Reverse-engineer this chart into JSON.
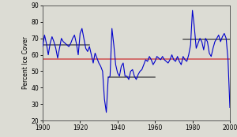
{
  "title": "",
  "xlabel": "",
  "ylabel": "Percent Ice Cover",
  "xlim": [
    1900,
    2000
  ],
  "ylim": [
    20,
    90
  ],
  "xticks": [
    1900,
    1920,
    1940,
    1960,
    1980,
    2000
  ],
  "yticks": [
    20,
    30,
    40,
    50,
    60,
    70,
    80,
    90
  ],
  "overall_mean": 57.5,
  "overall_mean_color": "#d05050",
  "period_means": [
    {
      "x_start": 1900,
      "x_end": 1925,
      "y": 66.0
    },
    {
      "x_start": 1935,
      "x_end": 1960,
      "y": 46.5
    },
    {
      "x_start": 1975,
      "x_end": 2000,
      "y": 69.5
    }
  ],
  "period_mean_color": "#555555",
  "line_color": "#0000cc",
  "line_width": 0.8,
  "background_color": "#dcdcd4",
  "years": [
    1900,
    1901,
    1902,
    1903,
    1904,
    1905,
    1906,
    1907,
    1908,
    1909,
    1910,
    1911,
    1912,
    1913,
    1914,
    1915,
    1916,
    1917,
    1918,
    1919,
    1920,
    1921,
    1922,
    1923,
    1924,
    1925,
    1926,
    1927,
    1928,
    1929,
    1930,
    1931,
    1932,
    1933,
    1934,
    1935,
    1936,
    1937,
    1938,
    1939,
    1940,
    1941,
    1942,
    1943,
    1944,
    1945,
    1946,
    1947,
    1948,
    1949,
    1950,
    1951,
    1952,
    1953,
    1954,
    1955,
    1956,
    1957,
    1958,
    1959,
    1960,
    1961,
    1962,
    1963,
    1964,
    1965,
    1966,
    1967,
    1968,
    1969,
    1970,
    1971,
    1972,
    1973,
    1974,
    1975,
    1976,
    1977,
    1978,
    1979,
    1980,
    1981,
    1982,
    1983,
    1984,
    1985,
    1986,
    1987,
    1988,
    1989,
    1990,
    1991,
    1992,
    1993,
    1994,
    1995,
    1996,
    1997,
    1998,
    1999,
    2000
  ],
  "values": [
    65,
    72,
    67,
    60,
    67,
    71,
    68,
    64,
    58,
    64,
    70,
    68,
    67,
    66,
    65,
    67,
    70,
    72,
    67,
    60,
    73,
    76,
    70,
    64,
    62,
    65,
    60,
    55,
    61,
    58,
    55,
    53,
    50,
    33,
    25,
    46,
    47,
    76,
    66,
    54,
    49,
    47,
    53,
    55,
    47,
    47,
    45,
    50,
    51,
    47,
    45,
    48,
    50,
    51,
    54,
    57,
    56,
    59,
    57,
    54,
    56,
    59,
    58,
    57,
    59,
    57,
    56,
    55,
    57,
    60,
    57,
    56,
    59,
    56,
    54,
    59,
    57,
    56,
    60,
    66,
    87,
    77,
    64,
    67,
    70,
    68,
    63,
    70,
    68,
    61,
    59,
    64,
    68,
    70,
    72,
    68,
    71,
    73,
    70,
    57,
    28
  ]
}
